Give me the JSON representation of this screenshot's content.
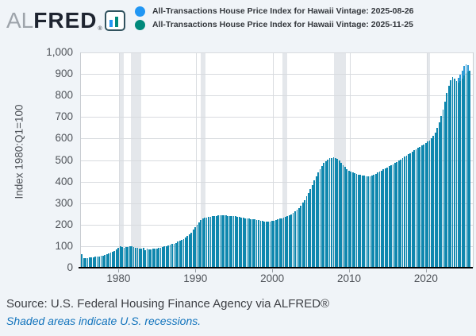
{
  "header": {
    "logo_al": "AL",
    "logo_fred": "FRED",
    "logo_reg": "®",
    "logo_icon_colors": {
      "left_bar": "#2196f3",
      "right_bar": "#00897b",
      "border": "#31525e"
    },
    "legend": [
      {
        "label": "All-Transactions House Price Index for Hawaii Vintage: 2025-08-26",
        "dot_color": "#2196f3"
      },
      {
        "label": "All-Transactions House Price Index for Hawaii Vintage: 2025-11-25",
        "dot_color": "#00897b"
      }
    ]
  },
  "chart_data": {
    "type": "bar",
    "title": "",
    "ylabel": "Index 1980:Q1=100",
    "xlabel": "",
    "ylim": [
      0,
      1000
    ],
    "x_range": [
      1975.0,
      2026.0
    ],
    "frequency": "quarterly",
    "grid": true,
    "legend_position": "top",
    "y_ticks": [
      {
        "value": 0,
        "label": "0"
      },
      {
        "value": 100,
        "label": "100"
      },
      {
        "value": 200,
        "label": "200"
      },
      {
        "value": 300,
        "label": "300"
      },
      {
        "value": 400,
        "label": "400"
      },
      {
        "value": 500,
        "label": "500"
      },
      {
        "value": 600,
        "label": "600"
      },
      {
        "value": 700,
        "label": "700"
      },
      {
        "value": 800,
        "label": "800"
      },
      {
        "value": 900,
        "label": "900"
      },
      {
        "value": 1000,
        "label": "1,000"
      }
    ],
    "x_ticks": [
      {
        "value": 1980,
        "label": "1980"
      },
      {
        "value": 1990,
        "label": "1990"
      },
      {
        "value": 2000,
        "label": "2000"
      },
      {
        "value": 2010,
        "label": "2010"
      },
      {
        "value": 2020,
        "label": "2020"
      }
    ],
    "recessions": [
      {
        "start": 1980.08,
        "end": 1980.59
      },
      {
        "start": 1981.54,
        "end": 1982.88
      },
      {
        "start": 1990.54,
        "end": 1991.21
      },
      {
        "start": 2001.21,
        "end": 2001.88
      },
      {
        "start": 2007.92,
        "end": 2009.46
      },
      {
        "start": 2020.12,
        "end": 2020.38
      }
    ],
    "series": [
      {
        "name": "All-Transactions House Price Index for Hawaii Vintage: 2025-08-26",
        "bar_color": "#2e9bd6",
        "start_quarter": "1975Q1",
        "end_quarter": "2025Q2",
        "values": [
          64,
          46,
          45,
          46,
          47,
          48,
          49,
          50,
          51,
          53,
          55,
          57,
          59,
          62,
          65,
          69,
          73,
          78,
          84,
          91,
          100,
          97,
          94,
          95,
          97,
          100,
          98,
          95,
          93,
          91,
          90,
          89,
          91,
          82,
          87,
          85,
          86,
          88,
          89,
          90,
          92,
          94,
          96,
          98,
          100,
          103,
          106,
          109,
          112,
          116,
          120,
          124,
          128,
          133,
          139,
          146,
          154,
          164,
          176,
          188,
          200,
          211,
          220,
          227,
          231,
          234,
          236,
          238,
          239,
          240,
          241,
          242,
          242,
          243,
          242,
          242,
          241,
          241,
          240,
          240,
          239,
          237,
          235,
          233,
          231,
          229,
          228,
          227,
          226,
          225,
          224,
          222,
          220,
          218,
          216,
          215,
          214,
          214,
          215,
          216,
          218,
          221,
          224,
          227,
          230,
          233,
          236,
          239,
          243,
          248,
          254,
          261,
          269,
          278,
          289,
          301,
          315,
          331,
          348,
          366,
          385,
          405,
          424,
          442,
          459,
          474,
          487,
          496,
          503,
          508,
          511,
          512,
          510,
          505,
          498,
          488,
          477,
          467,
          458,
          451,
          446,
          442,
          439,
          436,
          433,
          431,
          429,
          427,
          425,
          424,
          425,
          428,
          432,
          437,
          442,
          447,
          452,
          457,
          462,
          466,
          471,
          476,
          481,
          486,
          491,
          497,
          503,
          509,
          515,
          521,
          527,
          533,
          539,
          545,
          551,
          556,
          561,
          567,
          573,
          579,
          585,
          591,
          600,
          612,
          628,
          650,
          676,
          704,
          734,
          772,
          812,
          845,
          870,
          884,
          878,
          868,
          882,
          896,
          916,
          936,
          946,
          940
        ]
      },
      {
        "name": "All-Transactions House Price Index for Hawaii Vintage: 2025-11-25",
        "bar_color": "#0f87ae",
        "start_quarter": "1975Q1",
        "end_quarter": "2025Q3",
        "values": [
          64,
          46,
          45,
          46,
          47,
          48,
          49,
          50,
          51,
          53,
          55,
          57,
          59,
          62,
          65,
          69,
          73,
          78,
          84,
          91,
          100,
          97,
          94,
          95,
          97,
          100,
          98,
          95,
          93,
          91,
          90,
          89,
          91,
          82,
          87,
          85,
          86,
          88,
          89,
          90,
          92,
          94,
          96,
          98,
          100,
          103,
          106,
          109,
          112,
          116,
          120,
          124,
          128,
          133,
          139,
          146,
          154,
          164,
          176,
          188,
          200,
          211,
          220,
          227,
          231,
          234,
          236,
          238,
          239,
          240,
          241,
          242,
          242,
          243,
          242,
          242,
          241,
          241,
          240,
          240,
          239,
          237,
          235,
          233,
          231,
          229,
          228,
          227,
          226,
          225,
          224,
          222,
          220,
          218,
          216,
          215,
          214,
          214,
          215,
          216,
          218,
          221,
          224,
          227,
          230,
          233,
          236,
          239,
          243,
          248,
          254,
          261,
          269,
          278,
          289,
          301,
          315,
          331,
          348,
          366,
          385,
          405,
          424,
          442,
          459,
          474,
          487,
          496,
          503,
          508,
          511,
          512,
          510,
          505,
          498,
          488,
          477,
          467,
          458,
          451,
          446,
          442,
          439,
          436,
          433,
          431,
          429,
          427,
          425,
          424,
          425,
          428,
          432,
          437,
          442,
          447,
          452,
          457,
          462,
          466,
          471,
          476,
          481,
          486,
          491,
          497,
          503,
          509,
          515,
          521,
          527,
          533,
          539,
          545,
          551,
          556,
          561,
          567,
          573,
          579,
          585,
          591,
          600,
          612,
          628,
          650,
          676,
          704,
          734,
          772,
          812,
          845,
          870,
          884,
          878,
          868,
          860,
          868,
          880,
          893,
          903,
          910,
          916
        ]
      }
    ]
  },
  "footer": {
    "source": "Source: U.S. Federal Housing Finance Agency via ALFRED®",
    "note": "Shaded areas indicate U.S. recessions."
  }
}
